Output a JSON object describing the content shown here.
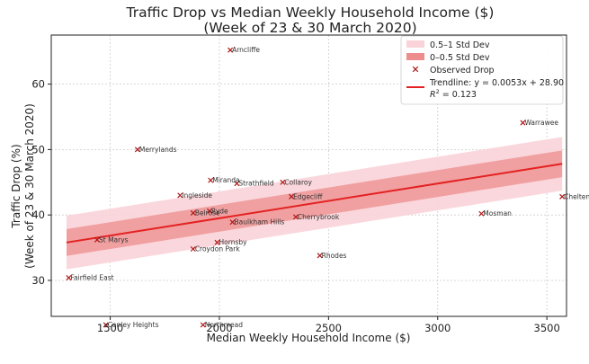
{
  "chart_data": {
    "type": "scatter",
    "title_line1": "Traffic Drop vs Median Weekly Household Income ($)",
    "title_line2": "(Week of 23 & 30 March 2020)",
    "xlabel": "Median Weekly Household Income ($)",
    "ylabel_line1": "Traffic Drop (%)",
    "ylabel_line2": "(Week of 23 & 30 March 2020)",
    "xlim": [
      1230,
      3590
    ],
    "ylim": [
      24.5,
      67.5
    ],
    "xticks": [
      1500,
      2000,
      2500,
      3000,
      3500
    ],
    "yticks": [
      30,
      40,
      50,
      60
    ],
    "grid": true,
    "legend_position": "top-right",
    "colors": {
      "band_outer": "#f9d3d8",
      "band_inner": "#ee8d8d",
      "trendline": "#e32222",
      "marker": "#b01818",
      "grid": "#cccccc",
      "axis": "#222222"
    },
    "trendline": {
      "slope": 0.0053,
      "intercept": 28.9,
      "x_start": 1300,
      "x_end": 3570,
      "r2": 0.123,
      "std": 4.1
    },
    "legend": {
      "outer_band": "0.5–1 Std Dev",
      "inner_band": "0–0.5 Std Dev",
      "observed": "Observed Drop",
      "trend_line1": "Trendline: y = 0.0053x + 28.90",
      "trend_r2_prefix": "R",
      "trend_r2_exp": "2",
      "trend_r2_suffix": " = 0.123"
    },
    "points": [
      {
        "label": "Arncliffe",
        "x": 2050,
        "y": 65.2
      },
      {
        "label": "Merrylands",
        "x": 1625,
        "y": 50.0
      },
      {
        "label": "Miranda",
        "x": 1960,
        "y": 45.3
      },
      {
        "label": "Strathfield",
        "x": 2080,
        "y": 44.8
      },
      {
        "label": "Collaroy",
        "x": 2290,
        "y": 45.0
      },
      {
        "label": "Ingleside",
        "x": 1820,
        "y": 43.0
      },
      {
        "label": "Edgecliff",
        "x": 2330,
        "y": 42.8
      },
      {
        "label": "Belrose",
        "x": 1880,
        "y": 40.3
      },
      {
        "label": "Ryde",
        "x": 1955,
        "y": 40.6
      },
      {
        "label": "Baulkham Hills",
        "x": 2060,
        "y": 38.9
      },
      {
        "label": "Cherrybrook",
        "x": 2350,
        "y": 39.7
      },
      {
        "label": "Hornsby",
        "x": 1990,
        "y": 35.8
      },
      {
        "label": "Croydon Park",
        "x": 1880,
        "y": 34.8
      },
      {
        "label": "St Marys",
        "x": 1440,
        "y": 36.2
      },
      {
        "label": "Rhodes",
        "x": 2460,
        "y": 33.8
      },
      {
        "label": "Fairfield East",
        "x": 1310,
        "y": 30.4
      },
      {
        "label": "Canley Heights",
        "x": 1480,
        "y": 23.2
      },
      {
        "label": "Northmead",
        "x": 1925,
        "y": 23.2
      },
      {
        "label": "Mosman",
        "x": 3200,
        "y": 40.2
      },
      {
        "label": "Warrawee",
        "x": 3390,
        "y": 54.1
      },
      {
        "label": "Cheltenham",
        "x": 3570,
        "y": 42.8
      }
    ]
  }
}
